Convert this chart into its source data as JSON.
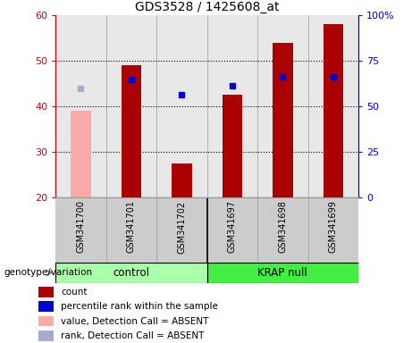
{
  "title": "GDS3528 / 1425608_at",
  "samples": [
    "GSM341700",
    "GSM341701",
    "GSM341702",
    "GSM341697",
    "GSM341698",
    "GSM341699"
  ],
  "counts": [
    null,
    49.0,
    27.5,
    42.5,
    54.0,
    58.0
  ],
  "count_absent": [
    39.0,
    null,
    null,
    null,
    null,
    null
  ],
  "percentile_ranks": [
    null,
    46.0,
    42.5,
    44.5,
    46.5,
    46.5
  ],
  "rank_absent": [
    44.0,
    null,
    null,
    null,
    null,
    null
  ],
  "ylim": [
    20,
    60
  ],
  "y2lim": [
    0,
    100
  ],
  "yticks": [
    20,
    30,
    40,
    50,
    60
  ],
  "y2ticks": [
    0,
    25,
    50,
    75,
    100
  ],
  "y2ticklabels": [
    "0",
    "25",
    "50",
    "75",
    "100%"
  ],
  "bar_color": "#aa0000",
  "bar_absent_color": "#ffaaaa",
  "dot_color": "#0000cc",
  "dot_absent_color": "#aaaacc",
  "plot_bg": "#e8e8e8",
  "left_label_color": "#cc0000",
  "right_label_color": "#0000cc",
  "group_control_color": "#aaffaa",
  "group_krap_color": "#44ee44",
  "sample_bg_color": "#cccccc",
  "legend_items": [
    {
      "label": "count",
      "color": "#aa0000"
    },
    {
      "label": "percentile rank within the sample",
      "color": "#0000cc"
    },
    {
      "label": "value, Detection Call = ABSENT",
      "color": "#ffaaaa"
    },
    {
      "label": "rank, Detection Call = ABSENT",
      "color": "#aaaacc"
    }
  ],
  "bar_width": 0.4
}
